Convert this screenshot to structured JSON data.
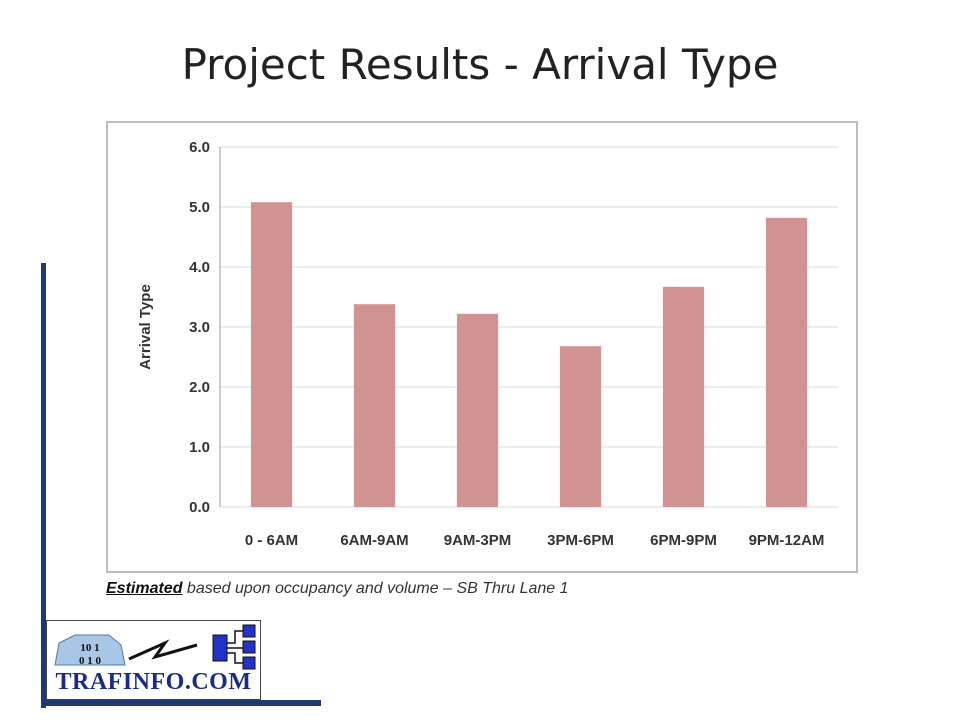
{
  "slide": {
    "title": "Project Results - Arrival Type",
    "caption_emphasis": "Estimated",
    "caption_rest": " based upon occupancy and volume – SB Thru Lane 1"
  },
  "logo": {
    "text": "TRAFINFO.COM",
    "digits_top": "10  1",
    "digits_bottom": "0  1  0"
  },
  "colors": {
    "bar": "#d09391",
    "accent": "#1f3a73",
    "logo_blue": "#1a2a8a",
    "grid": "#d9d9d9"
  },
  "chart_data": {
    "type": "bar",
    "categories": [
      "0 - 6AM",
      "6AM-9AM",
      "9AM-3PM",
      "3PM-6PM",
      "6PM-9PM",
      "9PM-12AM"
    ],
    "values": [
      5.08,
      3.38,
      3.22,
      2.68,
      3.67,
      4.82
    ],
    "title": "",
    "xlabel": "",
    "ylabel": "Arrival Type",
    "ylim": [
      0,
      6
    ],
    "yticks": [
      "0.0",
      "1.0",
      "2.0",
      "3.0",
      "4.0",
      "5.0",
      "6.0"
    ],
    "grid": true,
    "legend": "none"
  }
}
